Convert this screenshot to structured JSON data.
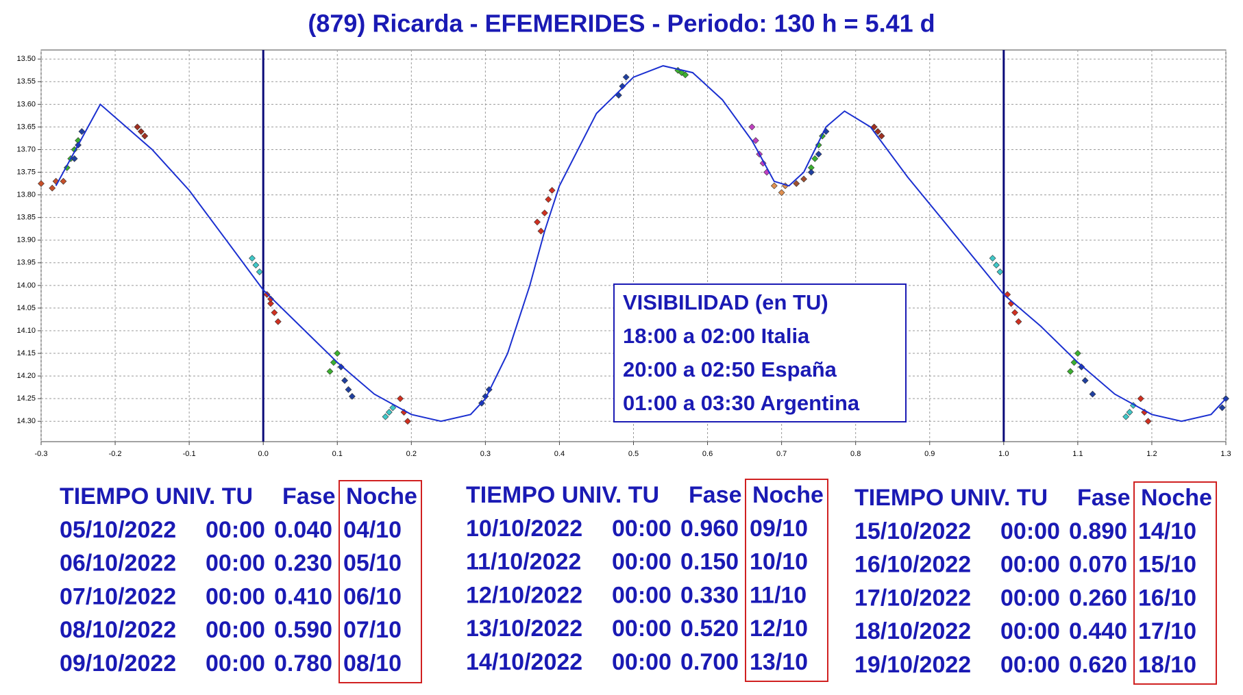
{
  "chart_data": {
    "type": "line",
    "title": "(879) Ricarda - EFEMERIDES - Periodo: 130 h = 5.41 d",
    "xlim": [
      -0.3,
      1.3
    ],
    "ylim": [
      13.48,
      14.345
    ],
    "y_inverted": true,
    "grid": true,
    "xticks": [
      -0.3,
      -0.2,
      -0.1,
      {
        "value": 0,
        "label": "0.0"
      },
      0.1,
      0.2,
      0.3,
      0.4,
      0.5,
      0.6,
      0.7,
      0.8,
      0.9,
      {
        "value": 1,
        "label": "1.0"
      },
      1.1,
      1.2,
      1.3
    ],
    "yticks": [
      {
        "value": 13.5,
        "label": "13.50"
      },
      13.55,
      {
        "value": 13.6,
        "label": "13.60"
      },
      13.65,
      {
        "value": 13.7,
        "label": "13.70"
      },
      13.75,
      {
        "value": 13.8,
        "label": "13.80"
      },
      13.85,
      {
        "value": 13.9,
        "label": "13.90"
      },
      13.95,
      {
        "value": 14,
        "label": "14.00"
      },
      14.05,
      {
        "value": 14.1,
        "label": "14.10"
      },
      14.15,
      {
        "value": 14.2,
        "label": "14.20"
      },
      14.25,
      {
        "value": 14.3,
        "label": "14.30"
      }
    ],
    "vlines": [
      0,
      1
    ],
    "vline_color": "#0a0a78",
    "series": [
      {
        "style": "line",
        "color": "#1a2fd0",
        "x": [
          -0.28,
          -0.25,
          -0.22,
          -0.15,
          -0.1,
          -0.05,
          0,
          0.05,
          0.1,
          0.15,
          0.2,
          0.24,
          0.28,
          0.3,
          0.33,
          0.36,
          0.38,
          0.4,
          0.45,
          0.5,
          0.54,
          0.58,
          0.62,
          0.66,
          0.69,
          0.71,
          0.73,
          0.76,
          0.785,
          0.82,
          0.87,
          0.92,
          0.97,
          1,
          1.05,
          1.1,
          1.15,
          1.2,
          1.24,
          1.28,
          1.3
        ],
        "values": [
          13.78,
          13.69,
          13.6,
          13.7,
          13.79,
          13.9,
          14.01,
          14.09,
          14.17,
          14.24,
          14.285,
          14.3,
          14.285,
          14.25,
          14.15,
          14.0,
          13.88,
          13.78,
          13.62,
          13.54,
          13.515,
          13.53,
          13.59,
          13.68,
          13.77,
          13.78,
          13.75,
          13.65,
          13.615,
          13.65,
          13.76,
          13.86,
          13.96,
          14.02,
          14.09,
          14.17,
          14.24,
          14.285,
          14.3,
          14.285,
          14.25
        ]
      },
      {
        "style": "points",
        "color": "#c8502a",
        "x": [
          -0.3,
          -0.285,
          -0.28,
          -0.27
        ],
        "values": [
          13.775,
          13.785,
          13.77,
          13.77
        ]
      },
      {
        "style": "points",
        "color": "#3cb030",
        "x": [
          -0.265,
          -0.26,
          -0.255,
          -0.25
        ],
        "values": [
          13.74,
          13.72,
          13.7,
          13.68
        ]
      },
      {
        "style": "points",
        "color": "#2040a0",
        "x": [
          -0.255,
          -0.25,
          -0.245
        ],
        "values": [
          13.72,
          13.69,
          13.66
        ]
      },
      {
        "style": "points",
        "color": "#a03020",
        "x": [
          -0.17,
          -0.165,
          -0.16
        ],
        "values": [
          13.65,
          13.66,
          13.67
        ]
      },
      {
        "style": "points",
        "color": "#40c8c8",
        "x": [
          -0.015,
          -0.01,
          -0.005
        ],
        "values": [
          13.94,
          13.955,
          13.97
        ]
      },
      {
        "style": "points",
        "color": "#d03020",
        "x": [
          0.005,
          0.01,
          0.015,
          0.02,
          0.01
        ],
        "values": [
          14.02,
          14.04,
          14.06,
          14.08,
          14.03
        ]
      },
      {
        "style": "points",
        "color": "#3cb030",
        "x": [
          0.09,
          0.095,
          0.1
        ],
        "values": [
          14.19,
          14.17,
          14.15
        ]
      },
      {
        "style": "points",
        "color": "#2040a0",
        "x": [
          0.105,
          0.11,
          0.115,
          0.12
        ],
        "values": [
          14.18,
          14.21,
          14.23,
          14.245
        ]
      },
      {
        "style": "points",
        "color": "#40c8c8",
        "x": [
          0.165,
          0.17,
          0.175
        ],
        "values": [
          14.29,
          14.28,
          14.27
        ]
      },
      {
        "style": "points",
        "color": "#d03020",
        "x": [
          0.185,
          0.19,
          0.195
        ],
        "values": [
          14.25,
          14.28,
          14.3
        ]
      },
      {
        "style": "points",
        "color": "#2040a0",
        "x": [
          0.295,
          0.3,
          0.305
        ],
        "values": [
          14.26,
          14.245,
          14.23
        ]
      },
      {
        "style": "points",
        "color": "#d03020",
        "x": [
          0.37,
          0.375,
          0.38,
          0.385,
          0.39
        ],
        "values": [
          13.86,
          13.88,
          13.84,
          13.81,
          13.79
        ]
      },
      {
        "style": "points",
        "color": "#2040a0",
        "x": [
          0.48,
          0.485,
          0.49
        ],
        "values": [
          13.58,
          13.56,
          13.54
        ]
      },
      {
        "style": "points",
        "color": "#3cb030",
        "x": [
          0.56,
          0.565,
          0.57
        ],
        "values": [
          13.525,
          13.53,
          13.535
        ]
      },
      {
        "style": "points",
        "color": "#c040c0",
        "x": [
          0.66,
          0.665,
          0.67,
          0.675,
          0.68
        ],
        "values": [
          13.65,
          13.68,
          13.71,
          13.73,
          13.75
        ]
      },
      {
        "style": "points",
        "color": "#e09050",
        "x": [
          0.69,
          0.7,
          0.705
        ],
        "values": [
          13.78,
          13.795,
          13.78
        ]
      },
      {
        "style": "points",
        "color": "#a05030",
        "x": [
          0.72,
          0.73
        ],
        "values": [
          13.775,
          13.765
        ]
      },
      {
        "style": "points",
        "color": "#3cb030",
        "x": [
          0.74,
          0.745,
          0.75,
          0.755
        ],
        "values": [
          13.74,
          13.72,
          13.69,
          13.67
        ]
      },
      {
        "style": "points",
        "color": "#2040a0",
        "x": [
          0.74,
          0.75,
          0.76
        ],
        "values": [
          13.75,
          13.71,
          13.66
        ]
      },
      {
        "style": "points",
        "color": "#a03020",
        "x": [
          0.825,
          0.83,
          0.835
        ],
        "values": [
          13.65,
          13.66,
          13.67
        ]
      },
      {
        "style": "points",
        "color": "#40c8c8",
        "x": [
          0.985,
          0.99,
          0.995
        ],
        "values": [
          13.94,
          13.955,
          13.97
        ]
      },
      {
        "style": "points",
        "color": "#d03020",
        "x": [
          1.005,
          1.01,
          1.015,
          1.02
        ],
        "values": [
          14.02,
          14.04,
          14.06,
          14.08
        ]
      },
      {
        "style": "points",
        "color": "#3cb030",
        "x": [
          1.09,
          1.095,
          1.1
        ],
        "values": [
          14.19,
          14.17,
          14.15
        ]
      },
      {
        "style": "points",
        "color": "#2040a0",
        "x": [
          1.105,
          1.11,
          1.12
        ],
        "values": [
          14.18,
          14.21,
          14.24
        ]
      },
      {
        "style": "points",
        "color": "#40c8c8",
        "x": [
          1.165,
          1.17,
          1.175
        ],
        "values": [
          14.29,
          14.28,
          14.265
        ]
      },
      {
        "style": "points",
        "color": "#d03020",
        "x": [
          1.185,
          1.19,
          1.195
        ],
        "values": [
          14.25,
          14.28,
          14.3
        ]
      },
      {
        "style": "points",
        "color": "#2040a0",
        "x": [
          1.295,
          1.3
        ],
        "values": [
          14.27,
          14.25
        ]
      }
    ],
    "annotation": {
      "lines": [
        "VISIBILIDAD (en TU)",
        "18:00 a 02:00 Italia",
        "20:00 a 02:50 España",
        "01:00 a 03:30 Argentina"
      ]
    }
  },
  "tables": [
    {
      "header": [
        "TIEMPO UNIV. TU",
        "Fase",
        "Noche"
      ],
      "rows": [
        [
          "05/10/2022",
          "00:00",
          "0.040",
          "04/10"
        ],
        [
          "06/10/2022",
          "00:00",
          "0.230",
          "05/10"
        ],
        [
          "07/10/2022",
          "00:00",
          "0.410",
          "06/10"
        ],
        [
          "08/10/2022",
          "00:00",
          "0.590",
          "07/10"
        ],
        [
          "09/10/2022",
          "00:00",
          "0.780",
          "08/10"
        ]
      ]
    },
    {
      "header": [
        "TIEMPO UNIV. TU",
        "Fase",
        "Noche"
      ],
      "rows": [
        [
          "10/10/2022",
          "00:00",
          "0.960",
          "09/10"
        ],
        [
          "11/10/2022",
          "00:00",
          "0.150",
          "10/10"
        ],
        [
          "12/10/2022",
          "00:00",
          "0.330",
          "11/10"
        ],
        [
          "13/10/2022",
          "00:00",
          "0.520",
          "12/10"
        ],
        [
          "14/10/2022",
          "00:00",
          "0.700",
          "13/10"
        ]
      ]
    },
    {
      "header": [
        "TIEMPO UNIV. TU",
        "Fase",
        "Noche"
      ],
      "rows": [
        [
          "15/10/2022",
          "00:00",
          "0.890",
          "14/10"
        ],
        [
          "16/10/2022",
          "00:00",
          "0.070",
          "15/10"
        ],
        [
          "17/10/2022",
          "00:00",
          "0.260",
          "16/10"
        ],
        [
          "18/10/2022",
          "00:00",
          "0.440",
          "17/10"
        ],
        [
          "19/10/2022",
          "00:00",
          "0.620",
          "18/10"
        ]
      ]
    }
  ]
}
